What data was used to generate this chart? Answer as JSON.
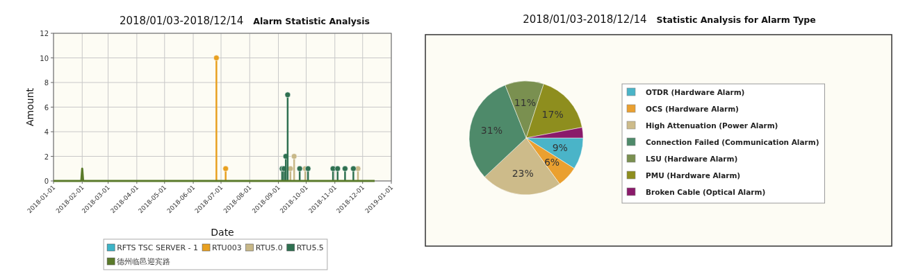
{
  "chart_data": [
    {
      "type": "lollipop",
      "title": "2018/01/03-2018/12/14",
      "subtitle": "Alarm Statistic Analysis",
      "xlabel": "Date",
      "ylabel": "Amount",
      "xlim": [
        "2018-01-01",
        "2019-01-01"
      ],
      "xticks": [
        "2018-01-01",
        "2018-02-01",
        "2018-03-01",
        "2018-04-01",
        "2018-05-01",
        "2018-06-01",
        "2018-07-01",
        "2018-08-01",
        "2018-09-01",
        "2018-10-01",
        "2018-11-01",
        "2018-12-01",
        "2019-01-01"
      ],
      "ylim": [
        0,
        12
      ],
      "yticks": [
        0,
        2,
        4,
        6,
        8,
        10,
        12
      ],
      "grid": true,
      "legend": "bottom",
      "marker": "circle",
      "series": [
        {
          "name": "RFTS TSC SERVER - 1",
          "color": "#3cb4c8"
        },
        {
          "name": "RTU003",
          "color": "#e8a020",
          "x": [
            "2018-06-26",
            "2018-07-06"
          ],
          "values": [
            10,
            1
          ]
        },
        {
          "name": "RTU5.0",
          "color": "#c8b888",
          "x": [
            "2018-09-14",
            "2018-09-18",
            "2018-09-30",
            "2018-11-26"
          ],
          "values": [
            1,
            2,
            1,
            1
          ]
        },
        {
          "name": "RTU5.5",
          "color": "#2e7050",
          "x": [
            "2018-09-05",
            "2018-09-07",
            "2018-09-09",
            "2018-09-11",
            "2018-09-24",
            "2018-10-03",
            "2018-10-30",
            "2018-11-04",
            "2018-11-12",
            "2018-11-21"
          ],
          "values": [
            1,
            1,
            2,
            7,
            1,
            1,
            1,
            1,
            1,
            1
          ]
        },
        {
          "name": "德州临邑迎宾路",
          "color": "#5a7a2a",
          "type": "line",
          "marker": "none",
          "x": [
            "2018-01-01",
            "2018-01-31",
            "2018-02-01",
            "2018-02-02",
            "2018-12-14"
          ],
          "values": [
            0,
            0,
            1,
            0,
            0
          ]
        }
      ]
    },
    {
      "type": "pie",
      "title": "2018/01/03-2018/12/14",
      "subtitle": "Statistic Analysis for Alarm Type",
      "legend": "right",
      "categories": [
        "OTDR  (Hardware Alarm)",
        "OCS (Hardware Alarm)",
        "High Attenuation (Power Alarm)",
        "Connection Failed  (Communication Alarm)",
        "LSU (Hardware Alarm)",
        "PMU  (Hardware Alarm)",
        "Broken Cable (Optical Alarm)"
      ],
      "values": [
        9,
        6,
        23,
        31,
        11,
        17,
        3
      ],
      "colors": [
        "#4ab4c8",
        "#eaa030",
        "#cdbb8a",
        "#4e8a6a",
        "#7a9050",
        "#8e8e1e",
        "#8a1a6a"
      ],
      "value_labels": [
        "9%",
        "6%",
        "23%",
        "31%",
        "11%",
        "17%",
        null
      ]
    }
  ]
}
